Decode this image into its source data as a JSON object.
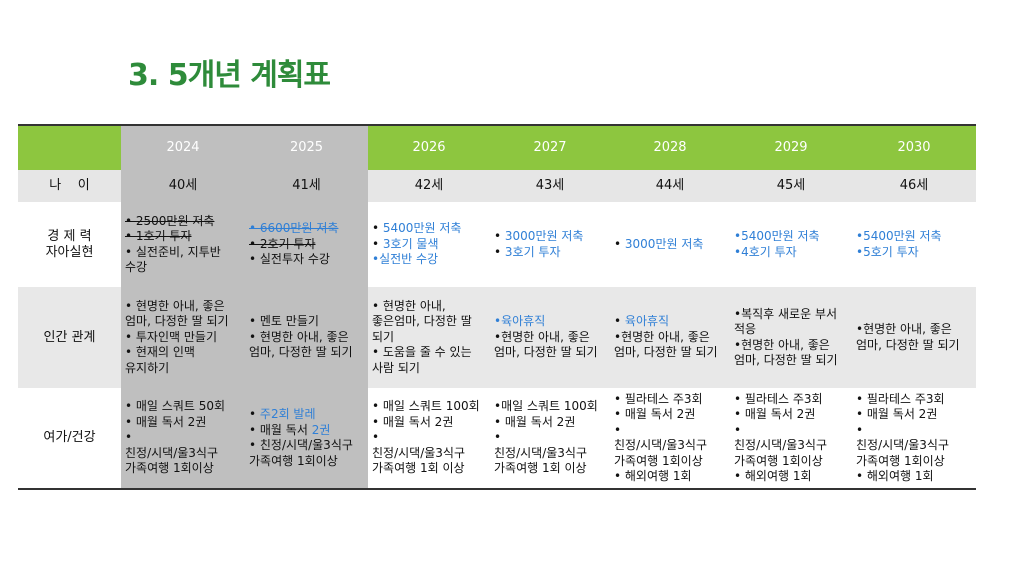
{
  "title": "3. 5개년 계획표",
  "colors": {
    "title": "#2e8b3a",
    "header": "#8dc63f",
    "past_columns": "#bfbfbf",
    "highlight_text": "#2f7fd6"
  },
  "years": [
    "2024",
    "2025",
    "2026",
    "2027",
    "2028",
    "2029",
    "2030"
  ],
  "past_years": [
    "2024",
    "2025"
  ],
  "age_label": "나    이",
  "ages": [
    "40세",
    "41세",
    "42세",
    "43세",
    "44세",
    "45세",
    "46세"
  ],
  "rows": [
    {
      "key": "econ",
      "label_lines": [
        "경 제 력",
        "자아실현"
      ],
      "cells": [
        [
          [
            {
              "t": "• 2500만원 저축",
              "s": 1
            }
          ],
          [
            {
              "t": "• 1호기 투자",
              "s": 1
            }
          ],
          [
            {
              "t": "• 실전준비, 지투반 수강"
            }
          ]
        ],
        [
          [
            {
              "t": "• 6600만원 저축",
              "b": 1,
              "s": 1
            }
          ],
          [
            {
              "t": "• 2호기 투자",
              "s": 1
            }
          ],
          [
            {
              "t": "• 실전투자 수강"
            }
          ]
        ],
        [
          [
            {
              "t": "• "
            },
            {
              "t": "5400만원 저축",
              "b": 1
            }
          ],
          [
            {
              "t": "• "
            },
            {
              "t": "3호기 물색",
              "b": 1
            }
          ],
          [
            {
              "t": "•실전반 수강",
              "b": 1
            }
          ]
        ],
        [
          [
            {
              "t": "• "
            },
            {
              "t": "3000만원 저축",
              "b": 1
            }
          ],
          [
            {
              "t": "• "
            },
            {
              "t": "3호기 투자",
              "b": 1
            }
          ]
        ],
        [
          [
            {
              "t": "• "
            },
            {
              "t": "3000만원 저축",
              "b": 1
            }
          ]
        ],
        [
          [
            {
              "t": "•5400만원 저축",
              "b": 1
            }
          ],
          [
            {
              "t": "•4호기 투자",
              "b": 1
            }
          ]
        ],
        [
          [
            {
              "t": "•5400만원 저축",
              "b": 1
            }
          ],
          [
            {
              "t": "•5호기 투자",
              "b": 1
            }
          ]
        ]
      ]
    },
    {
      "key": "rel",
      "label_lines": [
        "인간 관계"
      ],
      "cells": [
        [
          [
            {
              "t": "• 현명한 아내, 좋은 엄마, 다정한 딸 되기"
            }
          ],
          [
            {
              "t": "• 투자인맥 만들기"
            }
          ],
          [
            {
              "t": "• 현재의 인맥 유지하기"
            }
          ]
        ],
        [
          [
            {
              "t": "• 멘토 만들기"
            }
          ],
          [
            {
              "t": "• 현명한 아내, 좋은 엄마, 다정한 딸 되기"
            }
          ]
        ],
        [
          [
            {
              "t": "•  현명한 아내, 좋은엄마, 다정한 딸 되기"
            }
          ],
          [
            {
              "t": "• 도움을 줄 수 있는 사람 되기"
            }
          ]
        ],
        [
          [
            {
              "t": "•육아휴직",
              "b": 1
            }
          ],
          [
            {
              "t": "•현명한 아내, 좋은 엄마, 다정한 딸 되기"
            }
          ]
        ],
        [
          [
            {
              "t": "• "
            },
            {
              "t": "육아휴직",
              "b": 1
            }
          ],
          [
            {
              "t": "•현명한 아내, 좋은 엄마, 다정한 딸 되기"
            }
          ]
        ],
        [
          [
            {
              "t": "•복직후 새로운 부서 적응"
            }
          ],
          [
            {
              "t": "•현명한 아내, 좋은 엄마, 다정한 딸 되기"
            }
          ]
        ],
        [
          [
            {
              "t": "•현명한 아내, 좋은 엄마, 다정한 딸 되기"
            }
          ]
        ]
      ]
    },
    {
      "key": "leis",
      "label_lines": [
        "여가/건강"
      ],
      "cells": [
        [
          [
            {
              "t": "• 매일 스쿼트 50회"
            }
          ],
          [
            {
              "t": "• 매월 독서 2권"
            }
          ],
          [
            {
              "t": "•"
            }
          ],
          [
            {
              "t": "친정/시댁/울3식구 가족여행 1회이상"
            }
          ]
        ],
        [
          [
            {
              "t": "• "
            },
            {
              "t": "주2회 발레",
              "b": 1
            }
          ],
          [
            {
              "t": "• 매월 독서 "
            },
            {
              "t": "2권",
              "b": 1
            }
          ],
          [
            {
              "t": "• 친정/시댁/울3식구 가족여행 1회이상"
            }
          ]
        ],
        [
          [
            {
              "t": "• 매일 스쿼트 100회"
            }
          ],
          [
            {
              "t": "• 매월 독서 2권"
            }
          ],
          [
            {
              "t": "•"
            }
          ],
          [
            {
              "t": "친정/시댁/울3식구 가족여행 1회 이상"
            }
          ]
        ],
        [
          [
            {
              "t": "•매일 스쿼트 100회"
            }
          ],
          [
            {
              "t": "• 매월 독서 2권"
            }
          ],
          [
            {
              "t": "•"
            }
          ],
          [
            {
              "t": "친정/시댁/울3식구 가족여행 1회 이상"
            }
          ]
        ],
        [
          [
            {
              "t": "• 필라테스 주3회"
            }
          ],
          [
            {
              "t": "• 매월 독서 2권"
            }
          ],
          [
            {
              "t": "•"
            }
          ],
          [
            {
              "t": "친정/시댁/울3식구 가족여행 1회이상"
            }
          ],
          [
            {
              "t": "• 해외여행 1회"
            }
          ]
        ],
        [
          [
            {
              "t": "• 필라테스 주3회"
            }
          ],
          [
            {
              "t": "• 매월 독서 2권"
            }
          ],
          [
            {
              "t": "•"
            }
          ],
          [
            {
              "t": "친정/시댁/울3식구 가족여행 1회이상"
            }
          ],
          [
            {
              "t": "• 해외여행 1회"
            }
          ]
        ],
        [
          [
            {
              "t": "• 필라테스 주3회"
            }
          ],
          [
            {
              "t": "• 매월 독서 2권"
            }
          ],
          [
            {
              "t": "•"
            }
          ],
          [
            {
              "t": "친정/시댁/울3식구 가족여행 1회이상"
            }
          ],
          [
            {
              "t": "• 해외여행 1회"
            }
          ]
        ]
      ]
    }
  ]
}
